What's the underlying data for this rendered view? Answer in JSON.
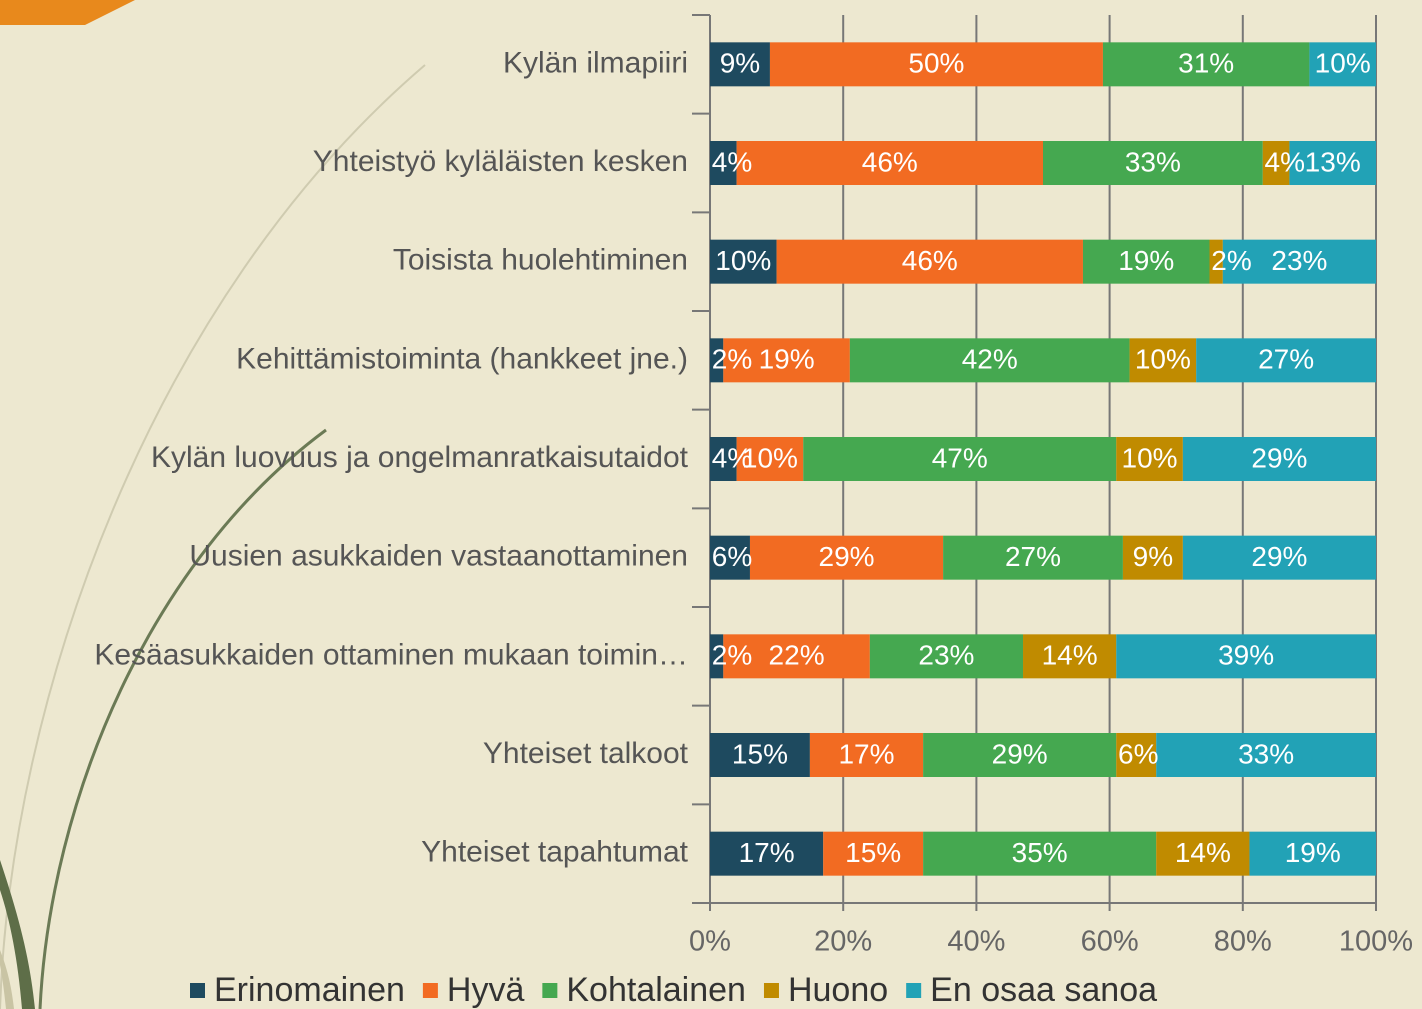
{
  "chart_data": {
    "type": "stacked-bar-horizontal",
    "categories": [
      "Kylän ilmapiiri",
      "Yhteistyö kyläläisten kesken",
      "Toisista huolehtiminen",
      "Kehittämistoiminta (hankkeet jne.)",
      "Kylän luovuus ja ongelmanratkaisutaidot",
      "Uusien asukkaiden vastaanottaminen",
      "Kesäasukkaiden ottaminen mukaan toimin…",
      "Yhteiset talkoot",
      "Yhteiset tapahtumat"
    ],
    "series": [
      {
        "name": "Erinomainen",
        "color": "#1e4a5f",
        "values": [
          9,
          4,
          10,
          2,
          4,
          6,
          2,
          15,
          17
        ],
        "value_labels": [
          "9%",
          "4%",
          "10%",
          "2%",
          "4%",
          "6%",
          "2%",
          "15%",
          "17%"
        ]
      },
      {
        "name": "Hyvä",
        "color": "#f26b22",
        "values": [
          50,
          46,
          46,
          19,
          10,
          29,
          22,
          17,
          15
        ],
        "value_labels": [
          "50%",
          "46%",
          "46%",
          "19%",
          "10%",
          "29%",
          "22%",
          "17%",
          "15%"
        ]
      },
      {
        "name": "Kohtalainen",
        "color": "#45a850",
        "values": [
          31,
          33,
          19,
          42,
          47,
          27,
          23,
          29,
          35
        ],
        "value_labels": [
          "31%",
          "33%",
          "19%",
          "42%",
          "47%",
          "27%",
          "23%",
          "29%",
          "35%"
        ]
      },
      {
        "name": "Huono",
        "color": "#c08b00",
        "values": [
          0,
          4,
          2,
          10,
          10,
          9,
          14,
          6,
          14
        ],
        "value_labels": [
          null,
          "4%",
          "2%",
          "10%",
          "10%",
          "9%",
          "14%",
          "6%",
          "14%"
        ]
      },
      {
        "name": "En osaa sanoa",
        "color": "#22a2b6",
        "values": [
          10,
          13,
          23,
          27,
          29,
          29,
          39,
          33,
          19
        ],
        "value_labels": [
          "10%",
          "13%",
          "23%",
          "27%",
          "29%",
          "29%",
          "39%",
          "33%",
          "19%"
        ]
      }
    ],
    "xlim": [
      0,
      100
    ],
    "xticks": [
      {
        "value": 0,
        "label": "0%"
      },
      {
        "value": 20,
        "label": "20%"
      },
      {
        "value": 40,
        "label": "40%"
      },
      {
        "value": 60,
        "label": "60%"
      },
      {
        "value": 80,
        "label": "80%"
      },
      {
        "value": 100,
        "label": "100%"
      }
    ],
    "grid": true,
    "legend": "bottom"
  }
}
